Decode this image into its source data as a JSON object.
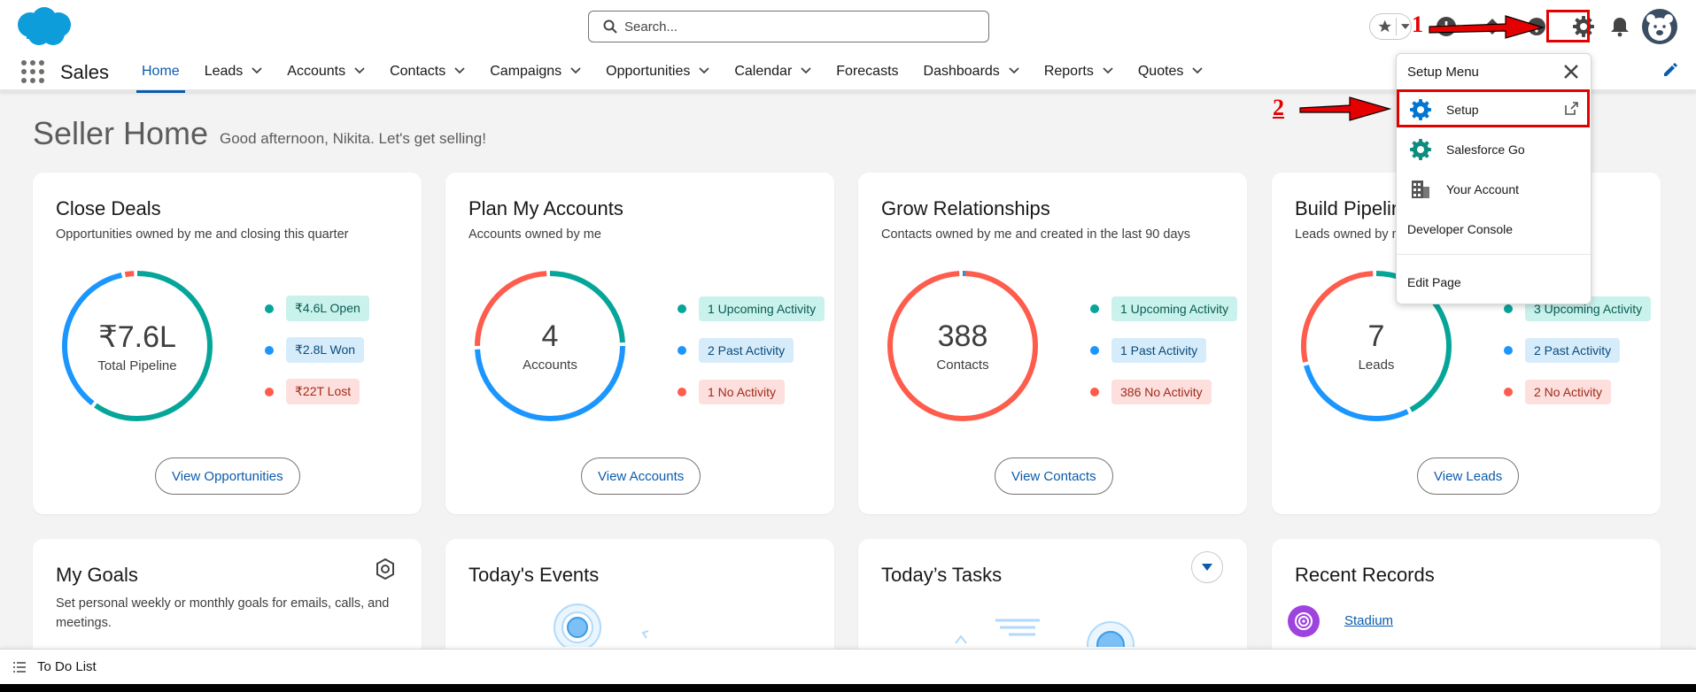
{
  "search": {
    "placeholder": "Search..."
  },
  "nav": {
    "app_name": "Sales",
    "items": [
      {
        "label": "Home",
        "has_menu": false,
        "active": true
      },
      {
        "label": "Leads",
        "has_menu": true
      },
      {
        "label": "Accounts",
        "has_menu": true
      },
      {
        "label": "Contacts",
        "has_menu": true
      },
      {
        "label": "Campaigns",
        "has_menu": true
      },
      {
        "label": "Opportunities",
        "has_menu": true
      },
      {
        "label": "Calendar",
        "has_menu": true
      },
      {
        "label": "Forecasts",
        "has_menu": false
      },
      {
        "label": "Dashboards",
        "has_menu": true
      },
      {
        "label": "Reports",
        "has_menu": true
      },
      {
        "label": "Quotes",
        "has_menu": true
      }
    ]
  },
  "page": {
    "title": "Seller Home",
    "greeting": "Good afternoon, Nikita. Let's get selling!"
  },
  "cards": [
    {
      "title": "Close Deals",
      "subtitle": "Opportunities owned by me and closing this quarter",
      "center_value": "₹7.6L",
      "center_label": "Total Pipeline",
      "legend": [
        {
          "text": "₹4.6L Open",
          "style": "teal",
          "color": "#06a59a"
        },
        {
          "text": "₹2.8L Won",
          "style": "blue",
          "color": "#1b96ff"
        },
        {
          "text": "₹22T Lost",
          "style": "red",
          "color": "#fe5c4c"
        }
      ],
      "ring_shares": [
        0.605,
        0.368,
        0.027
      ],
      "button": "View Opportunities"
    },
    {
      "title": "Plan My Accounts",
      "subtitle": "Accounts owned by me",
      "center_value": "4",
      "center_label": "Accounts",
      "legend": [
        {
          "text": "1 Upcoming Activity",
          "style": "teal",
          "color": "#06a59a"
        },
        {
          "text": "2 Past Activity",
          "style": "blue",
          "color": "#1b96ff"
        },
        {
          "text": "1 No Activity",
          "style": "red",
          "color": "#fe5c4c"
        }
      ],
      "ring_shares": [
        0.25,
        0.5,
        0.25
      ],
      "button": "View Accounts"
    },
    {
      "title": "Grow Relationships",
      "subtitle": "Contacts owned by me and created in the last 90 days",
      "center_value": "388",
      "center_label": "Contacts",
      "legend": [
        {
          "text": "1 Upcoming Activity",
          "style": "teal",
          "color": "#06a59a"
        },
        {
          "text": "1 Past Activity",
          "style": "blue",
          "color": "#1b96ff"
        },
        {
          "text": "386 No Activity",
          "style": "red",
          "color": "#fe5c4c"
        }
      ],
      "ring_shares": [
        0.0026,
        0.0026,
        0.9948
      ],
      "button": "View Contacts"
    },
    {
      "title": "Build Pipeline",
      "subtitle": "Leads owned by me",
      "center_value": "7",
      "center_label": "Leads",
      "legend": [
        {
          "text": "3 Upcoming Activity",
          "style": "teal",
          "color": "#06a59a"
        },
        {
          "text": "2 Past Activity",
          "style": "blue",
          "color": "#1b96ff"
        },
        {
          "text": "2 No Activity",
          "style": "red",
          "color": "#fe5c4c"
        }
      ],
      "ring_shares": [
        0.4286,
        0.2857,
        0.2857
      ],
      "button": "View Leads"
    }
  ],
  "lower_cards": {
    "goals": {
      "title": "My Goals",
      "description": "Set personal weekly or monthly goals for emails, calls, and meetings."
    },
    "events": {
      "title": "Today's Events"
    },
    "tasks": {
      "title": "Today’s Tasks"
    },
    "recent": {
      "title": "Recent Records",
      "items": [
        {
          "label": "Stadium"
        }
      ]
    }
  },
  "setup_menu": {
    "header": "Setup Menu",
    "items": [
      {
        "label": "Setup",
        "icon": "gear-icon"
      },
      {
        "label": "Salesforce Go",
        "icon": "gear-icon"
      },
      {
        "label": "Your Account",
        "icon": "building-icon"
      },
      {
        "label": "Developer Console",
        "icon": ""
      },
      {
        "label": "Edit Page",
        "icon": ""
      }
    ]
  },
  "annotations": {
    "step1": "1",
    "step2": "2"
  },
  "utility_bar": {
    "label": "To Do List"
  },
  "colors": {
    "teal": "#06a59a",
    "blue": "#1b96ff",
    "red": "#fe5c4c",
    "brand": "#0b5cab",
    "annotation": "#e50000"
  }
}
